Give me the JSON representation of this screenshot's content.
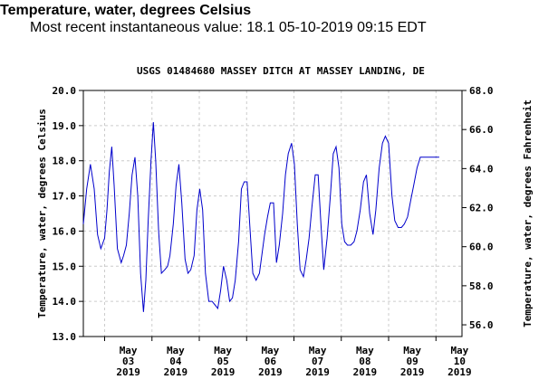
{
  "header": {
    "title": "Temperature, water, degrees Celsius",
    "subtitle": "Most recent instantaneous value: 18.1 05-10-2019   09:15 EDT"
  },
  "chart_data": {
    "type": "line",
    "title": "USGS 01484680 MASSEY DITCH AT MASSEY LANDING, DE",
    "ylabel": "Temperature, water, degrees Celsius",
    "ylabel_right": "Temperature, water, degrees Fahrenheit",
    "ylim": [
      13.0,
      20.0
    ],
    "ylim_right_f": [
      55.4,
      68.0
    ],
    "yticks": [
      "13.0",
      "14.0",
      "15.0",
      "16.0",
      "17.0",
      "18.0",
      "19.0",
      "20.0"
    ],
    "yticks_right": [
      "56.0",
      "58.0",
      "60.0",
      "62.0",
      "64.0",
      "66.0",
      "68.0"
    ],
    "xlim_days": [
      2.55,
      10.55
    ],
    "xticks": [
      {
        "day": 3,
        "lines": [
          "May",
          "03",
          "2019"
        ]
      },
      {
        "day": 4,
        "lines": [
          "May",
          "04",
          "2019"
        ]
      },
      {
        "day": 5,
        "lines": [
          "May",
          "05",
          "2019"
        ]
      },
      {
        "day": 6,
        "lines": [
          "May",
          "06",
          "2019"
        ]
      },
      {
        "day": 7,
        "lines": [
          "May",
          "07",
          "2019"
        ]
      },
      {
        "day": 8,
        "lines": [
          "May",
          "08",
          "2019"
        ]
      },
      {
        "day": 9,
        "lines": [
          "May",
          "09",
          "2019"
        ]
      },
      {
        "day": 10,
        "lines": [
          "May",
          "10",
          "2019"
        ]
      }
    ],
    "grid": true,
    "line_color": "#0000cc",
    "series": [
      {
        "x_days": [
          2.55,
          2.62,
          2.7,
          2.78,
          2.85,
          2.92,
          3.0,
          3.05,
          3.1,
          3.15,
          3.2,
          3.27,
          3.35,
          3.4,
          3.46,
          3.52,
          3.58,
          3.64,
          3.7,
          3.76,
          3.82,
          3.87,
          3.92,
          3.98,
          4.03,
          4.08,
          4.14,
          4.2,
          4.27,
          4.33,
          4.38,
          4.45,
          4.51,
          4.57,
          4.63,
          4.7,
          4.76,
          4.82,
          4.89,
          4.95,
          5.01,
          5.07,
          5.13,
          5.2,
          5.27,
          5.33,
          5.39,
          5.45,
          5.51,
          5.58,
          5.64,
          5.7,
          5.76,
          5.83,
          5.89,
          5.95,
          6.01,
          6.07,
          6.13,
          6.2,
          6.27,
          6.33,
          6.38,
          6.44,
          6.5,
          6.57,
          6.63,
          6.69,
          6.76,
          6.82,
          6.88,
          6.95,
          7.01,
          7.07,
          7.13,
          7.2,
          7.26,
          7.32,
          7.38,
          7.45,
          7.51,
          7.57,
          7.63,
          7.7,
          7.77,
          7.83,
          7.89,
          7.95,
          8.01,
          8.07,
          8.13,
          8.2,
          8.27,
          8.33,
          8.4,
          8.47,
          8.53,
          8.6,
          8.67,
          8.73,
          8.8,
          8.87,
          8.93,
          9.0,
          9.07,
          9.13,
          9.2,
          9.27,
          9.33,
          9.4,
          9.47,
          9.53,
          9.6,
          9.67,
          9.73,
          9.8,
          9.87,
          9.93,
          10.0,
          10.07
        ],
        "values": [
          16.2,
          17.2,
          17.9,
          17.2,
          15.9,
          15.5,
          15.8,
          16.6,
          17.7,
          18.4,
          17.3,
          15.5,
          15.1,
          15.3,
          15.6,
          16.5,
          17.6,
          18.1,
          17.0,
          14.8,
          13.7,
          14.6,
          16.3,
          18.0,
          19.1,
          18.0,
          16.0,
          14.8,
          14.9,
          15.0,
          15.3,
          16.2,
          17.3,
          17.9,
          16.8,
          15.2,
          14.8,
          14.9,
          15.3,
          16.6,
          17.2,
          16.6,
          14.8,
          14.0,
          14.0,
          13.9,
          13.8,
          14.3,
          15.0,
          14.6,
          14.0,
          14.1,
          14.6,
          15.7,
          17.2,
          17.4,
          17.4,
          16.1,
          14.8,
          14.6,
          14.8,
          15.4,
          15.9,
          16.4,
          16.8,
          16.8,
          15.1,
          15.6,
          16.5,
          17.6,
          18.2,
          18.5,
          17.9,
          16.2,
          14.9,
          14.7,
          15.2,
          15.8,
          16.7,
          17.6,
          17.6,
          16.2,
          14.9,
          15.8,
          17.0,
          18.2,
          18.4,
          17.8,
          16.2,
          15.7,
          15.6,
          15.6,
          15.7,
          16.0,
          16.6,
          17.4,
          17.6,
          16.5,
          15.9,
          16.6,
          17.8,
          18.5,
          18.7,
          18.5,
          17.0,
          16.3,
          16.1,
          16.1,
          16.2,
          16.4,
          16.9,
          17.3,
          17.8,
          18.1,
          18.1,
          18.1,
          18.1,
          18.1,
          18.1,
          18.1
        ]
      }
    ]
  }
}
